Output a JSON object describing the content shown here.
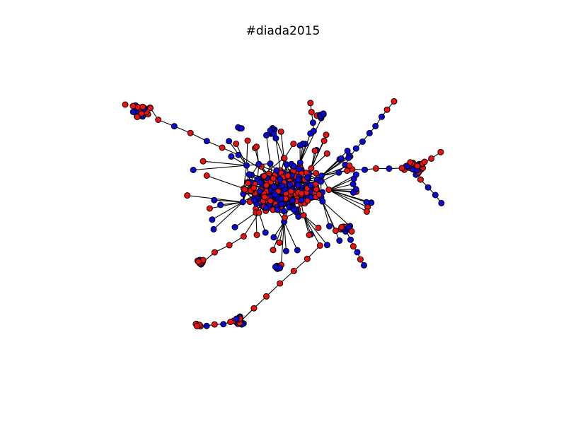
{
  "title": "#diada2015",
  "colors": {
    "red": "#ee1111",
    "blue": "#0b07d6",
    "edge": "#000000",
    "background": "#ffffff"
  },
  "graph": {
    "type": "network",
    "node_colors": [
      "red",
      "blue"
    ],
    "seed": 2015
  }
}
